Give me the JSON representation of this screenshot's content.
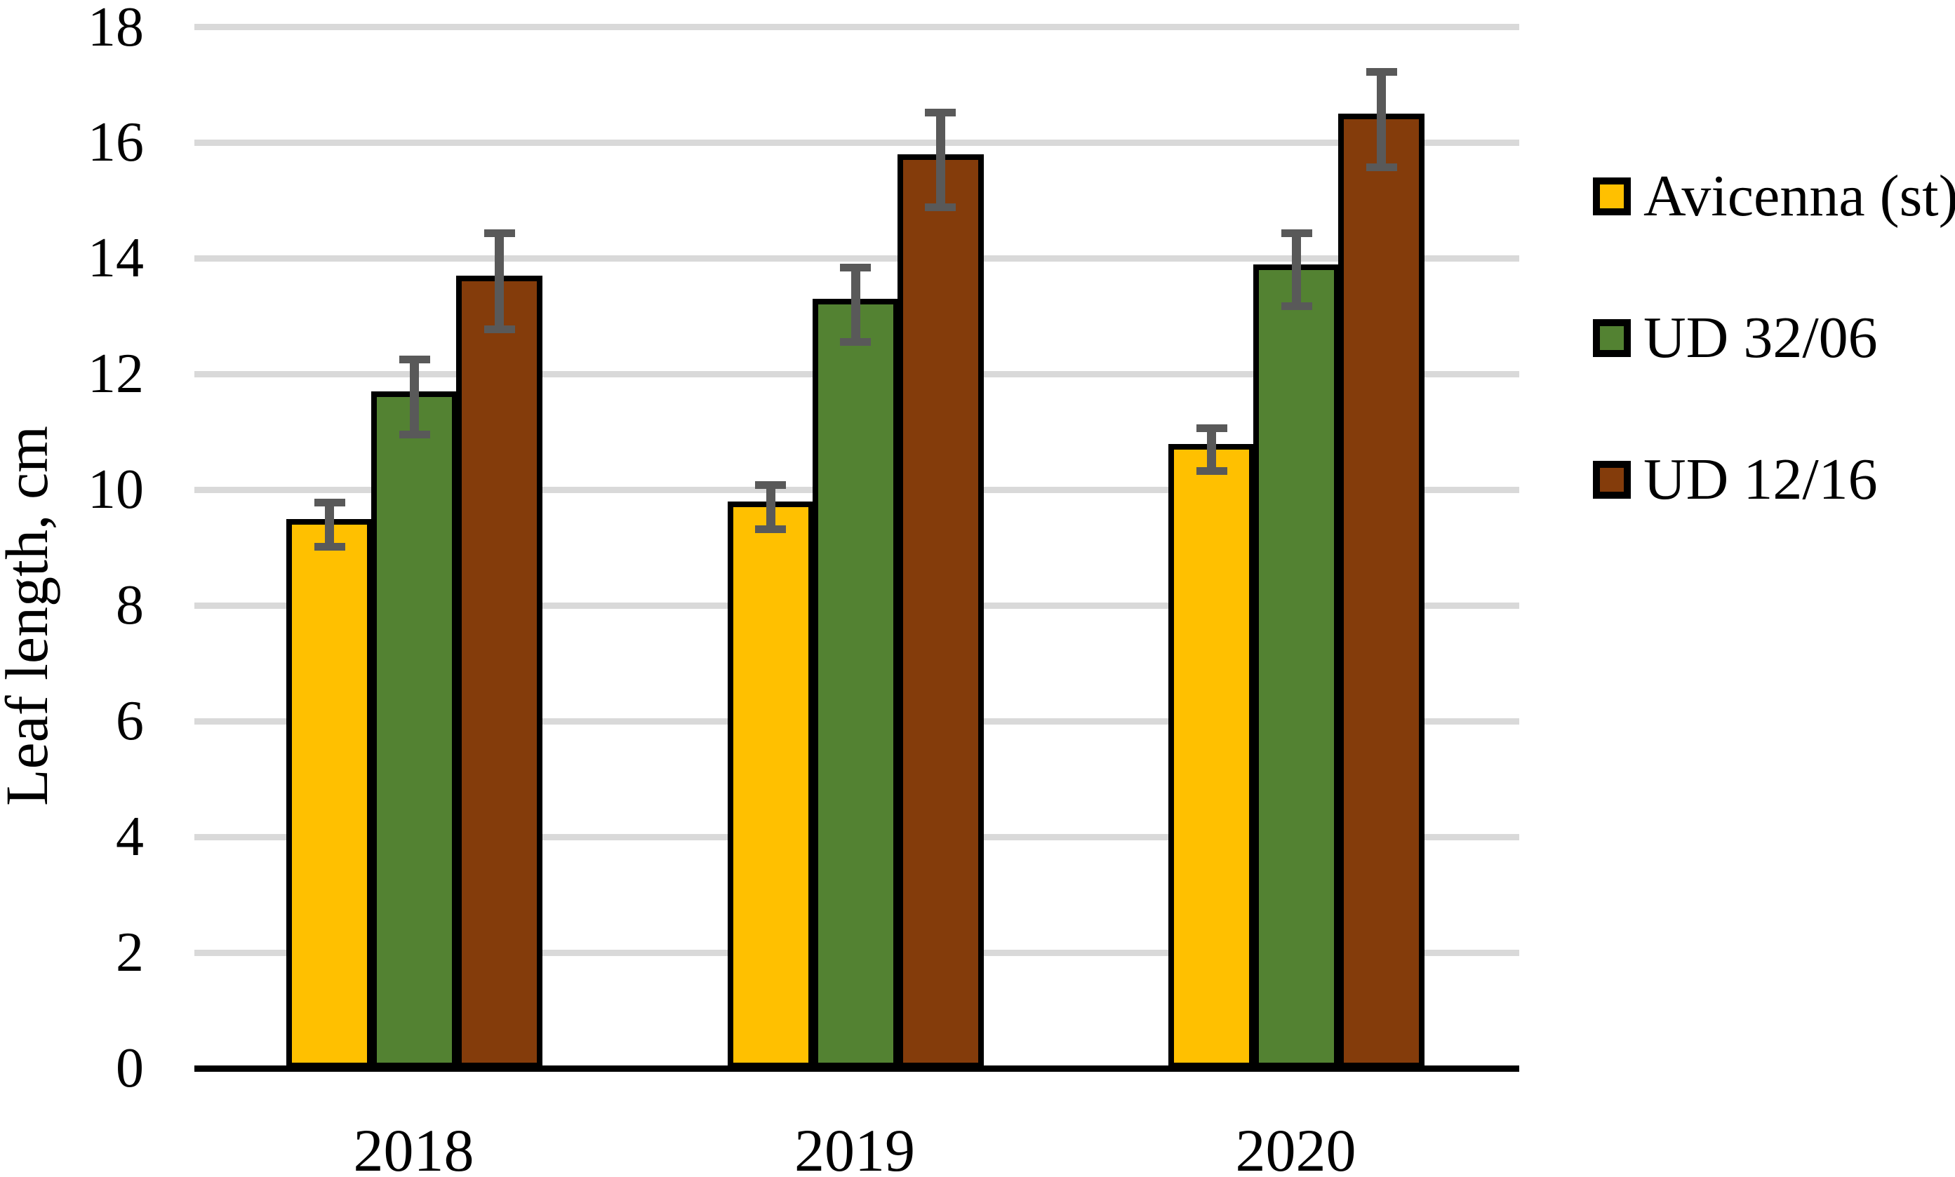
{
  "chart_data": {
    "type": "bar",
    "title": "",
    "categories": [
      "2018",
      "2019",
      "2020"
    ],
    "series": [
      {
        "name": "Avicenna (st)",
        "color": "#FFC000",
        "values": [
          9.4,
          9.7,
          10.7
        ],
        "errors": [
          0.38,
          0.38,
          0.37
        ]
      },
      {
        "name": "UD 32/06",
        "color": "#538232",
        "values": [
          11.6,
          13.2,
          13.8
        ],
        "errors": [
          0.65,
          0.64,
          0.63
        ]
      },
      {
        "name": "UD 12/16",
        "color": "#843C0B",
        "values": [
          13.6,
          15.7,
          16.4
        ],
        "errors": [
          0.83,
          0.82,
          0.82
        ]
      }
    ],
    "xlabel": "",
    "ylabel": "Leaf length, cm",
    "ylim": [
      0,
      18
    ],
    "ytick_step": 2,
    "grid": true,
    "gridline_color": "#d9d9d9",
    "error_bar_color": "#595959",
    "bar_border_color": "#000000",
    "legend_position": "right"
  }
}
